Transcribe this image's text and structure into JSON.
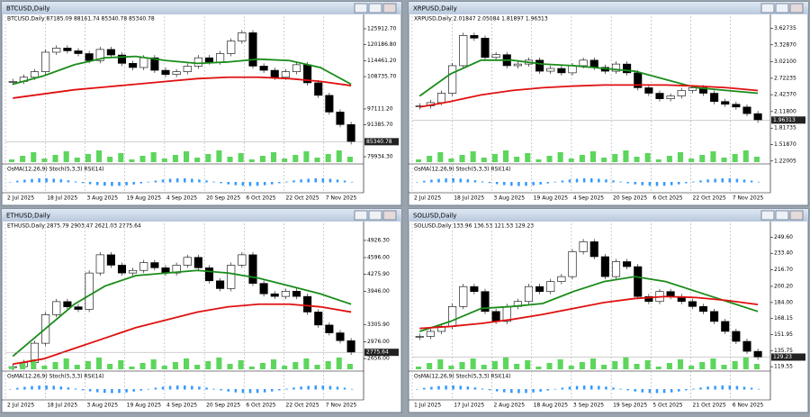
{
  "windows": [
    {
      "title": "BTCUSD,Daily",
      "quote": "87185.09 88161.74 85340.78 85340.78",
      "indicator": "OsMA(12,26,9) Stoch(5,3,3) RSI(14)",
      "yticks": [
        {
          "value": 125912.7,
          "label": "125912.70"
        },
        {
          "value": 120186.8,
          "label": "120186.80"
        },
        {
          "value": 114461.2,
          "label": "114461.20"
        },
        {
          "value": 108735.7,
          "label": "108735.70"
        },
        {
          "value": 97111.2,
          "label": "97111.20"
        },
        {
          "value": 91385.7,
          "label": "91385.70"
        },
        {
          "value": 79934.3,
          "label": "79934.30"
        }
      ],
      "ylim": [
        78000,
        128500
      ],
      "price": {
        "value": 85340.78,
        "label": "85340.78"
      },
      "dates": [
        "2 Jul 2025",
        "18 Jul 2025",
        "3 Aug 2025",
        "19 Aug 2025",
        "4 Sep 2025",
        "20 Sep 2025",
        "6 Oct 2025",
        "22 Oct 2025",
        "7 Nov 2025"
      ],
      "close": [
        107000,
        108500,
        110500,
        117500,
        119000,
        118000,
        117000,
        114500,
        118500,
        116500,
        113500,
        112000,
        115500,
        111000,
        109500,
        110500,
        112500,
        115500,
        114000,
        117000,
        121500,
        124500,
        112500,
        111000,
        108500,
        110500,
        113000,
        106500,
        102000,
        96000,
        91500,
        85340.78
      ],
      "ma50": [
        106000,
        109000,
        113000,
        115500,
        116000,
        114500,
        113500,
        114000,
        115000,
        114500,
        112000,
        106000
      ],
      "ma200": [
        101000,
        102500,
        104000,
        105000,
        106000,
        107000,
        108000,
        108500,
        108500,
        108000,
        107000,
        105500
      ]
    },
    {
      "title": "XRPUSD,Daily",
      "quote": "2.01847 2.05084 1.81897 1.96313",
      "indicator": "OsMA(12,26,9) Stoch(5,3,3) RSI(14)",
      "yticks": [
        {
          "value": 3.62735,
          "label": "3.62735"
        },
        {
          "value": 3.3287,
          "label": "3.32870"
        },
        {
          "value": 3.021,
          "label": "3.02100"
        },
        {
          "value": 2.72235,
          "label": "2.72235"
        },
        {
          "value": 2.4237,
          "label": "2.42370"
        },
        {
          "value": 2.118,
          "label": "2.11800"
        },
        {
          "value": 1.81735,
          "label": "1.81735"
        },
        {
          "value": 1.5187,
          "label": "1.51870"
        },
        {
          "value": 1.22005,
          "label": "1.22005"
        }
      ],
      "ylim": [
        1.2,
        3.75
      ],
      "price": {
        "value": 1.96313,
        "label": "1.96313"
      },
      "dates": [
        "2 Jul 2025",
        "18 Jul 2025",
        "3 Aug 2025",
        "19 Aug 2025",
        "4 Sep 2025",
        "20 Sep 2025",
        "6 Oct 2025",
        "22 Oct 2025",
        "7 Nov 2025"
      ],
      "close": [
        2.22,
        2.28,
        2.45,
        2.95,
        3.5,
        3.45,
        3.1,
        3.15,
        2.95,
        2.98,
        3.05,
        2.85,
        2.9,
        2.82,
        2.95,
        3.05,
        2.92,
        2.85,
        2.98,
        2.82,
        2.55,
        2.45,
        2.35,
        2.4,
        2.5,
        2.55,
        2.45,
        2.3,
        2.25,
        2.2,
        2.08,
        1.96313
      ],
      "ma50": [
        2.4,
        2.8,
        3.05,
        3.05,
        2.98,
        2.95,
        2.9,
        2.85,
        2.7,
        2.55,
        2.5,
        2.45
      ],
      "ma200": [
        2.2,
        2.3,
        2.42,
        2.5,
        2.55,
        2.58,
        2.6,
        2.6,
        2.6,
        2.58,
        2.55,
        2.5
      ]
    },
    {
      "title": "ETHUSD,Daily",
      "quote": "2875.79 2903.47 2621.03 2775.64",
      "indicator": "OsMA(12,26,9) Stoch(5,3,3) RSI(14)",
      "yticks": [
        {
          "value": 4926.3,
          "label": "4926.30"
        },
        {
          "value": 4596,
          "label": "4596.00"
        },
        {
          "value": 4275.9,
          "label": "4275.90"
        },
        {
          "value": 3946,
          "label": "3946.00"
        },
        {
          "value": 3305.9,
          "label": "3305.90"
        },
        {
          "value": 2976,
          "label": "2976.00"
        },
        {
          "value": 2656,
          "label": "2656.00"
        }
      ],
      "ylim": [
        2450,
        5150
      ],
      "price": {
        "value": 2775.64,
        "label": "2775.64"
      },
      "dates": [
        "2 Jul 2025",
        "18 Jul 2025",
        "3 Aug 2025",
        "19 Aug 2025",
        "4 Sep 2025",
        "20 Sep 2025",
        "6 Oct 2025",
        "22 Oct 2025",
        "7 Nov 2025"
      ],
      "close": [
        2500,
        2580,
        2950,
        3500,
        3750,
        3650,
        3600,
        4300,
        4650,
        4450,
        4300,
        4350,
        4500,
        4400,
        4300,
        4450,
        4600,
        4400,
        4150,
        4000,
        4450,
        4650,
        4100,
        3900,
        3850,
        3950,
        3850,
        3550,
        3300,
        3150,
        3000,
        2775.64
      ],
      "ma50": [
        2700,
        3200,
        3700,
        4050,
        4250,
        4300,
        4350,
        4300,
        4200,
        4050,
        3900,
        3700
      ],
      "ma200": [
        2550,
        2650,
        2850,
        3050,
        3250,
        3400,
        3550,
        3650,
        3700,
        3700,
        3650,
        3550
      ]
    },
    {
      "title": "SOLUSD,Daily",
      "quote": "133.96 136.53 121.53 129.23",
      "indicator": "OsMA(12,26,9) Stoch(5,3,3) RSI(14)",
      "yticks": [
        {
          "value": 249.6,
          "label": "249.60"
        },
        {
          "value": 233.4,
          "label": "233.40"
        },
        {
          "value": 216.7,
          "label": "216.70"
        },
        {
          "value": 200.2,
          "label": "200.20"
        },
        {
          "value": 184,
          "label": "184.00"
        },
        {
          "value": 168.15,
          "label": "168.15"
        },
        {
          "value": 151.95,
          "label": "151.95"
        },
        {
          "value": 135.75,
          "label": "135.75"
        },
        {
          "value": 119.55,
          "label": "119.55"
        }
      ],
      "ylim": [
        117,
        258
      ],
      "price": {
        "value": 129.23,
        "label": "129.23"
      },
      "dates": [
        "1 Jul 2025",
        "17 Jul 2025",
        "2 Aug 2025",
        "18 Aug 2025",
        "3 Sep 2025",
        "19 Sep 2025",
        "5 Oct 2025",
        "21 Oct 2025",
        "6 Nov 2025"
      ],
      "close": [
        150,
        155,
        160,
        180,
        200,
        195,
        175,
        165,
        180,
        185,
        200,
        195,
        205,
        210,
        235,
        245,
        230,
        210,
        225,
        220,
        190,
        185,
        195,
        190,
        185,
        180,
        175,
        165,
        155,
        145,
        135,
        129.23
      ],
      "ma50": [
        155,
        165,
        178,
        180,
        183,
        195,
        205,
        210,
        205,
        195,
        185,
        175
      ],
      "ma200": [
        158,
        160,
        163,
        167,
        172,
        178,
        184,
        188,
        190,
        189,
        186,
        182
      ]
    }
  ]
}
